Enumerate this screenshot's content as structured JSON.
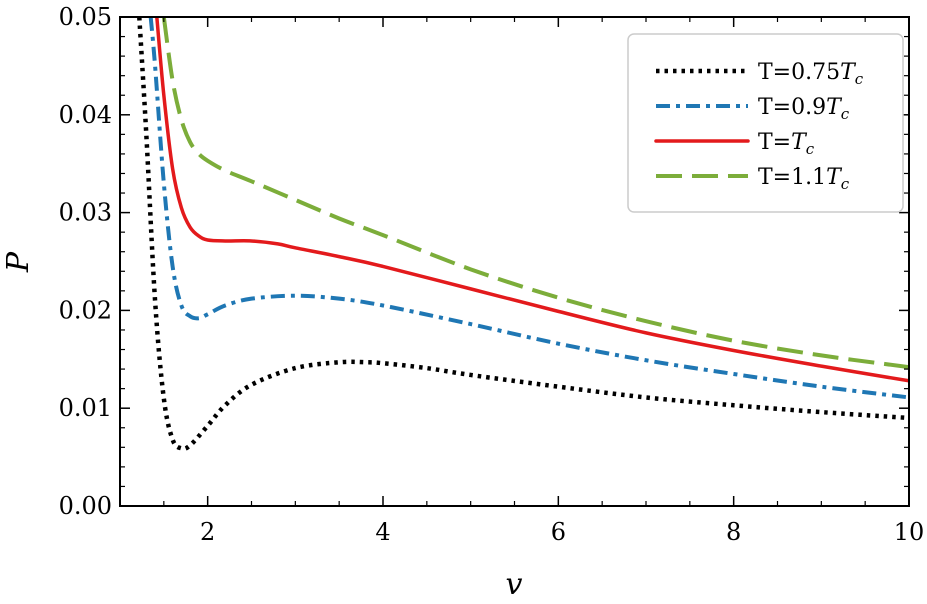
{
  "chart_data": {
    "type": "line",
    "title": "",
    "xlabel": "v",
    "ylabel": "P",
    "xlim": [
      1.0,
      10.0
    ],
    "ylim": [
      0.0,
      0.05
    ],
    "x_ticks": [
      2,
      4,
      6,
      8,
      10
    ],
    "x_tick_labels": [
      "2",
      "4",
      "6",
      "8",
      "10"
    ],
    "y_ticks": [
      0.0,
      0.01,
      0.02,
      0.03,
      0.04,
      0.05
    ],
    "y_tick_labels": [
      "0.00",
      "0.01",
      "0.02",
      "0.03",
      "0.04",
      "0.05"
    ],
    "grid": false,
    "legend_position": "top-right",
    "series": [
      {
        "name": "T=0.75T_c",
        "label_main": "T=0.75",
        "label_italic": "T",
        "label_sub": "c",
        "color": "#000000",
        "style": "dotted",
        "x": [
          1.22,
          1.3,
          1.4,
          1.5,
          1.6,
          1.7,
          1.8,
          2.0,
          2.2,
          2.5,
          3.0,
          3.5,
          3.8,
          4.0,
          4.5,
          5.0,
          6.0,
          7.0,
          8.0,
          9.0,
          10.0
        ],
        "y": [
          0.05,
          0.038,
          0.021,
          0.011,
          0.0068,
          0.0059,
          0.0062,
          0.0082,
          0.0103,
          0.0124,
          0.0141,
          0.0147,
          0.0147,
          0.0146,
          0.0141,
          0.0134,
          0.0122,
          0.0111,
          0.0103,
          0.0096,
          0.009
        ]
      },
      {
        "name": "T=0.9T_c",
        "label_main": "T=0.9",
        "label_italic": "T",
        "label_sub": "c",
        "color": "#1f77b4",
        "style": "dashdot",
        "x": [
          1.35,
          1.4,
          1.5,
          1.6,
          1.7,
          1.8,
          1.9,
          2.0,
          2.2,
          2.5,
          3.0,
          3.5,
          4.0,
          5.0,
          6.0,
          7.0,
          8.0,
          9.0,
          10.0
        ],
        "y": [
          0.05,
          0.045,
          0.033,
          0.0245,
          0.0205,
          0.0194,
          0.0192,
          0.0196,
          0.0205,
          0.0212,
          0.0215,
          0.0212,
          0.0205,
          0.0186,
          0.0166,
          0.0149,
          0.0135,
          0.0122,
          0.0111
        ]
      },
      {
        "name": "T=T_c",
        "label_main": "T=",
        "label_italic": "T",
        "label_sub": "c",
        "color": "#e31a1c",
        "style": "solid",
        "x": [
          1.42,
          1.5,
          1.6,
          1.7,
          1.8,
          1.9,
          2.0,
          2.2,
          2.5,
          2.8,
          3.0,
          3.5,
          4.0,
          5.0,
          6.0,
          7.0,
          8.0,
          9.0,
          10.0
        ],
        "y": [
          0.05,
          0.042,
          0.0345,
          0.0305,
          0.0285,
          0.0276,
          0.0272,
          0.0271,
          0.0271,
          0.0268,
          0.0264,
          0.0255,
          0.0245,
          0.0222,
          0.0199,
          0.0177,
          0.0159,
          0.0143,
          0.0128
        ]
      },
      {
        "name": "T=1.1T_c",
        "label_main": "T=1.1",
        "label_italic": "T",
        "label_sub": "c",
        "color": "#7cad3a",
        "style": "dashed",
        "x": [
          1.5,
          1.6,
          1.7,
          1.8,
          1.9,
          2.0,
          2.2,
          2.5,
          3.0,
          3.5,
          4.0,
          5.0,
          6.0,
          7.0,
          8.0,
          9.0,
          10.0
        ],
        "y": [
          0.05,
          0.0435,
          0.0395,
          0.0372,
          0.036,
          0.0353,
          0.0343,
          0.0332,
          0.0313,
          0.0294,
          0.0277,
          0.0242,
          0.0213,
          0.0189,
          0.0169,
          0.0154,
          0.0142
        ]
      }
    ]
  }
}
